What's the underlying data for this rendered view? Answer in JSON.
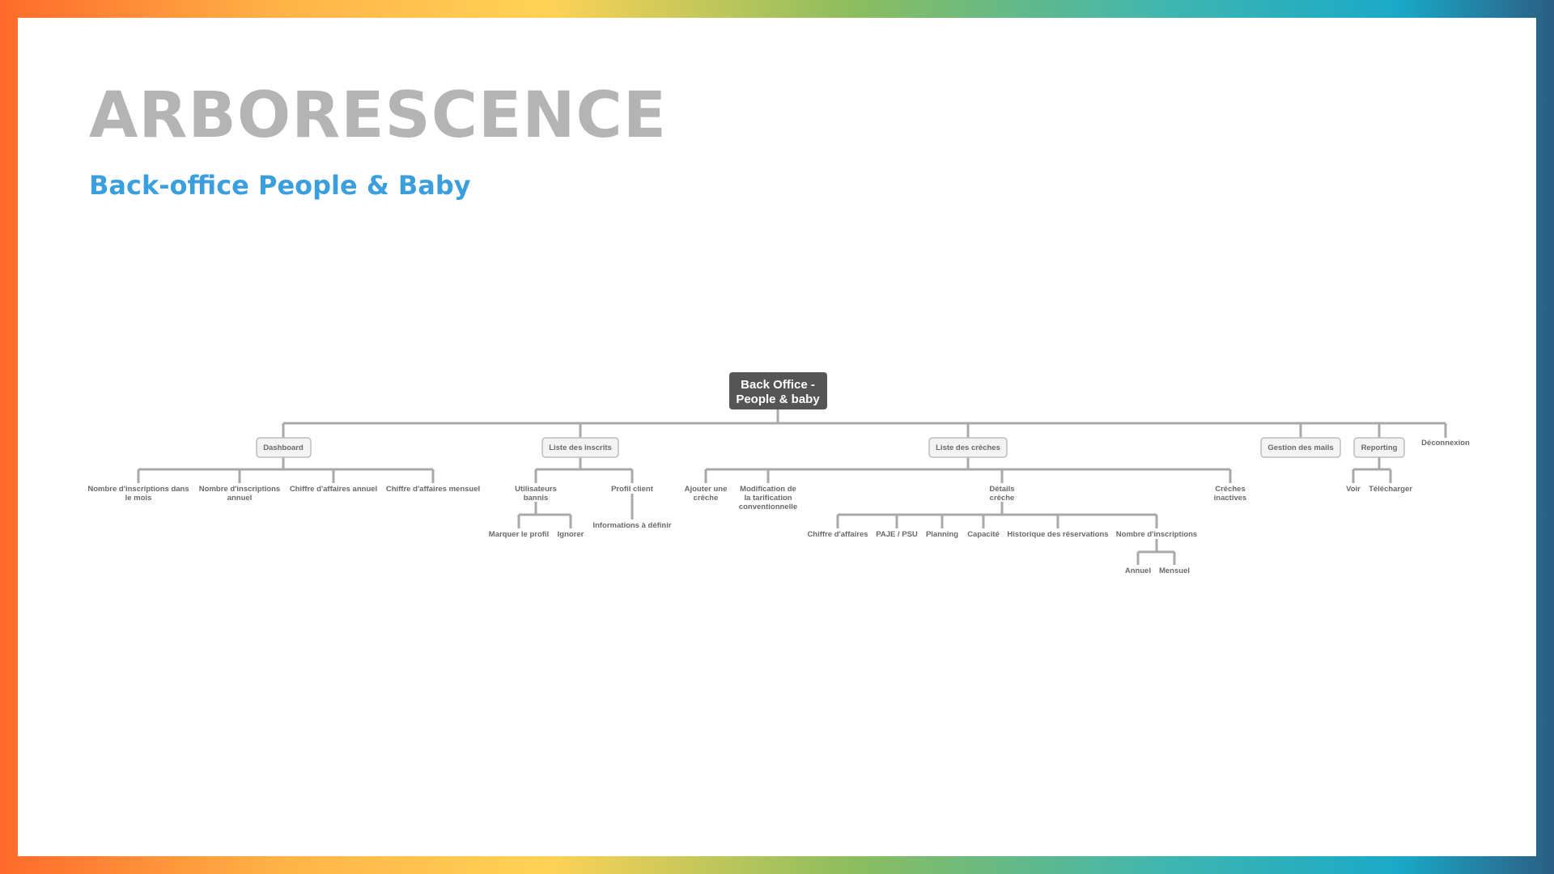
{
  "header": {
    "title": "ARBORESCENCE",
    "subtitle": "Back-office People & Baby"
  },
  "colors": {
    "title": "#b4b4b4",
    "subtitle": "#3a9fdc",
    "root_fill": "#555555",
    "node_fill": "#f3f3f3",
    "connector": "#a9a9a9"
  },
  "tree": {
    "root": [
      "Back Office -",
      "People & baby"
    ],
    "dashboard": {
      "label": "Dashboard",
      "children": [
        [
          "Nombre d'inscriptions dans",
          "le mois"
        ],
        [
          "Nombre d'inscriptions",
          "annuel"
        ],
        [
          "Chiffre d'affaires annuel"
        ],
        [
          "Chiffre d'affaires mensuel"
        ]
      ]
    },
    "inscrits": {
      "label": "Liste des inscrits",
      "bannis": [
        "Utilisateurs",
        "bannis"
      ],
      "bannis_children": [
        "Marquer le profil",
        "Ignorer"
      ],
      "profil": "Profil client",
      "profil_children": [
        "Informations à définir"
      ]
    },
    "creches": {
      "label": "Liste des crèches",
      "ajouter": [
        "Ajouter une",
        "crèche"
      ],
      "modification": [
        "Modification de",
        "la tarification",
        "conventionnelle"
      ],
      "details": [
        "Détails",
        "crèche"
      ],
      "details_children": [
        "Chiffre d'affaires",
        "PAJE / PSU",
        "Planning",
        "Capacité",
        "Historique des réservations",
        "Nombre d'inscriptions"
      ],
      "inscriptions_children": [
        "Annuel",
        "Mensuel"
      ],
      "inactives": [
        "Crèches",
        "inactives"
      ]
    },
    "mails": {
      "label": "Gestion des mails"
    },
    "reporting": {
      "label": "Reporting",
      "children": [
        "Voir",
        "Télécharger"
      ]
    },
    "deconnexion": {
      "label": "Déconnexion"
    }
  }
}
